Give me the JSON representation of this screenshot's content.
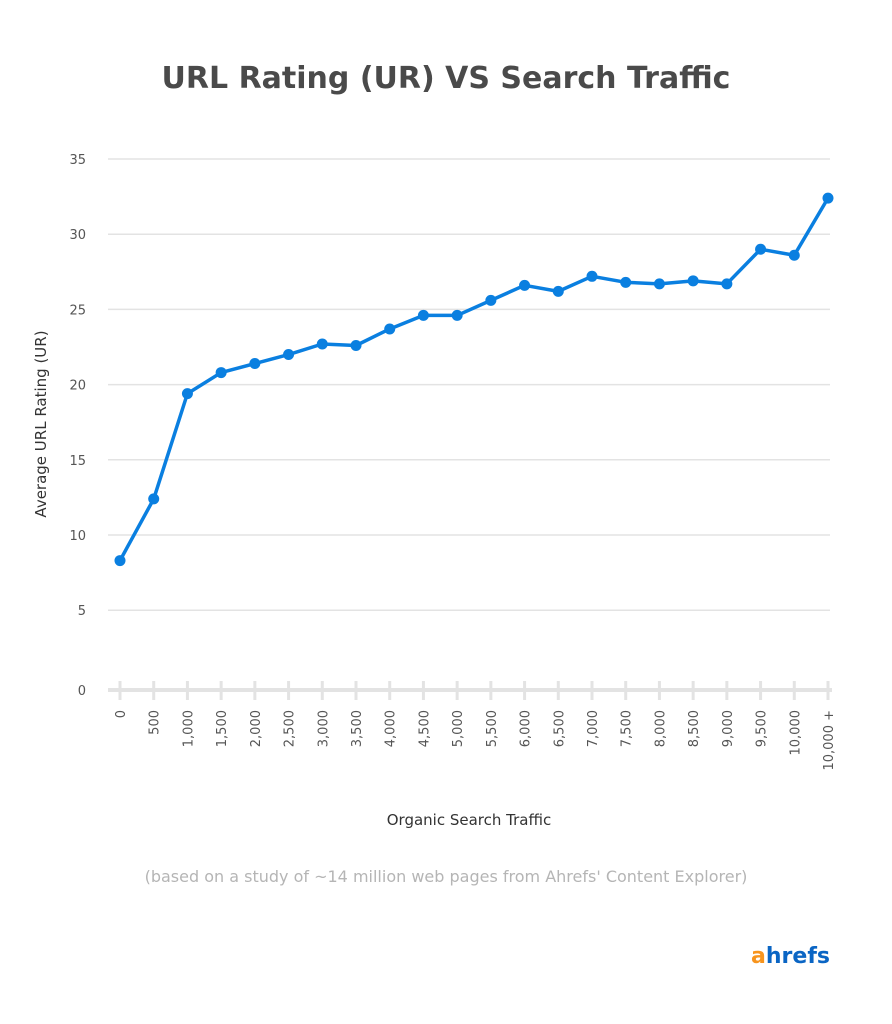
{
  "chart_data": {
    "type": "line",
    "title": "URL Rating (UR) VS Search Traffic",
    "xlabel": "Organic Search Traffic",
    "ylabel": "Average URL Rating (UR)",
    "categories": [
      "0",
      "500",
      "1,000",
      "1,500",
      "2,000",
      "2,500",
      "3,000",
      "3,500",
      "4,000",
      "4,500",
      "5,000",
      "5,500",
      "6,000",
      "6,500",
      "7,000",
      "7,500",
      "8,000",
      "8,500",
      "9,000",
      "9,500",
      "10,000",
      "10,000 +"
    ],
    "values": [
      8.3,
      12.4,
      19.4,
      20.8,
      21.4,
      22.0,
      22.7,
      22.6,
      23.7,
      24.6,
      24.6,
      25.6,
      26.6,
      26.2,
      27.2,
      26.8,
      26.7,
      26.9,
      26.7,
      29.0,
      28.6,
      32.4
    ],
    "ylim": [
      0,
      35
    ],
    "yticks": [
      0,
      5,
      10,
      15,
      20,
      25,
      30,
      35
    ],
    "grid": true,
    "line_color": "#0a7fe0",
    "note": "(based on a study of ~14 million web pages from Ahrefs' Content Explorer)"
  },
  "logo": {
    "text": "ahrefs",
    "first_letter": "a",
    "rest": "hrefs",
    "orange": "#f7941d",
    "blue": "#0a65c4"
  }
}
